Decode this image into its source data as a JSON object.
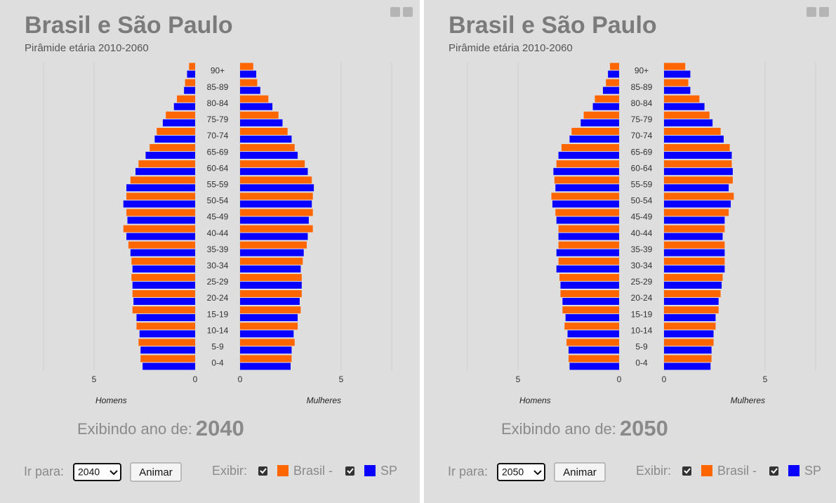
{
  "chart_data": [
    {
      "type": "pyramid",
      "title": "Brasil e São Paulo",
      "subtitle": "Pirâmide etária 2010-2060",
      "categories": [
        "90+",
        "85-89",
        "80-84",
        "75-79",
        "70-74",
        "65-69",
        "60-64",
        "55-59",
        "50-54",
        "45-49",
        "40-44",
        "35-39",
        "30-34",
        "25-29",
        "20-24",
        "15-19",
        "10-14",
        "5-9",
        "0-4"
      ],
      "left_label": "Homens",
      "right_label": "Mulheres",
      "series": [
        {
          "name": "Brasil -",
          "color": "#ff6600",
          "men": [
            0.3,
            0.5,
            0.9,
            1.45,
            1.9,
            2.25,
            2.8,
            3.2,
            3.4,
            3.4,
            3.55,
            3.3,
            3.15,
            3.15,
            3.1,
            3.1,
            2.9,
            2.8,
            2.7
          ],
          "women": [
            0.65,
            0.85,
            1.4,
            1.9,
            2.35,
            2.7,
            3.2,
            3.55,
            3.6,
            3.6,
            3.6,
            3.3,
            3.1,
            3.05,
            3.05,
            3.0,
            2.85,
            2.7,
            2.55
          ]
        },
        {
          "name": "SP",
          "color": "#0a00ff",
          "men": [
            0.4,
            0.55,
            1.05,
            1.6,
            2.0,
            2.45,
            2.95,
            3.4,
            3.55,
            3.35,
            3.4,
            3.2,
            3.1,
            3.1,
            3.05,
            2.9,
            2.75,
            2.7,
            2.6
          ],
          "women": [
            0.8,
            1.0,
            1.6,
            2.1,
            2.55,
            2.85,
            3.35,
            3.65,
            3.55,
            3.4,
            3.35,
            3.15,
            3.0,
            3.05,
            2.95,
            2.85,
            2.65,
            2.55,
            2.5
          ]
        }
      ],
      "xlim": [
        0,
        7.5
      ],
      "xticks": [
        0,
        5
      ],
      "grid": true,
      "year_caption": "Exibindo ano de:",
      "year": 2040,
      "goto_label": "Ir para:",
      "button": "Animar",
      "show_label": "Exibir:"
    },
    {
      "type": "pyramid",
      "title": "Brasil e São Paulo",
      "subtitle": "Pirâmide etária 2010-2060",
      "categories": [
        "90+",
        "85-89",
        "80-84",
        "75-79",
        "70-74",
        "65-69",
        "60-64",
        "55-59",
        "50-54",
        "45-49",
        "40-44",
        "35-39",
        "30-34",
        "25-29",
        "20-24",
        "15-19",
        "10-14",
        "5-9",
        "0-4"
      ],
      "left_label": "Homens",
      "right_label": "Mulheres",
      "series": [
        {
          "name": "Brasil -",
          "color": "#ff6600",
          "men": [
            0.45,
            0.65,
            1.2,
            1.75,
            2.35,
            2.85,
            3.1,
            3.2,
            3.35,
            3.15,
            3.0,
            3.0,
            3.0,
            2.95,
            2.9,
            2.8,
            2.7,
            2.6,
            2.5
          ],
          "women": [
            1.05,
            1.2,
            1.75,
            2.25,
            2.8,
            3.25,
            3.35,
            3.4,
            3.45,
            3.2,
            3.0,
            3.0,
            3.0,
            2.9,
            2.8,
            2.7,
            2.55,
            2.45,
            2.35
          ]
        },
        {
          "name": "SP",
          "color": "#0a00ff",
          "men": [
            0.55,
            0.8,
            1.3,
            1.9,
            2.45,
            3.0,
            3.25,
            3.15,
            3.3,
            3.1,
            3.0,
            3.1,
            3.1,
            2.9,
            2.8,
            2.65,
            2.55,
            2.5,
            2.45
          ],
          "women": [
            1.3,
            1.3,
            2.0,
            2.4,
            2.95,
            3.35,
            3.4,
            3.2,
            3.3,
            3.0,
            2.9,
            3.0,
            3.0,
            2.85,
            2.7,
            2.55,
            2.45,
            2.35,
            2.3
          ]
        }
      ],
      "xlim": [
        0,
        7.5
      ],
      "xticks": [
        0,
        5
      ],
      "grid": true,
      "year_caption": "Exibindo ano de:",
      "year": 2050,
      "goto_label": "Ir para:",
      "button": "Animar",
      "show_label": "Exibir:"
    }
  ]
}
